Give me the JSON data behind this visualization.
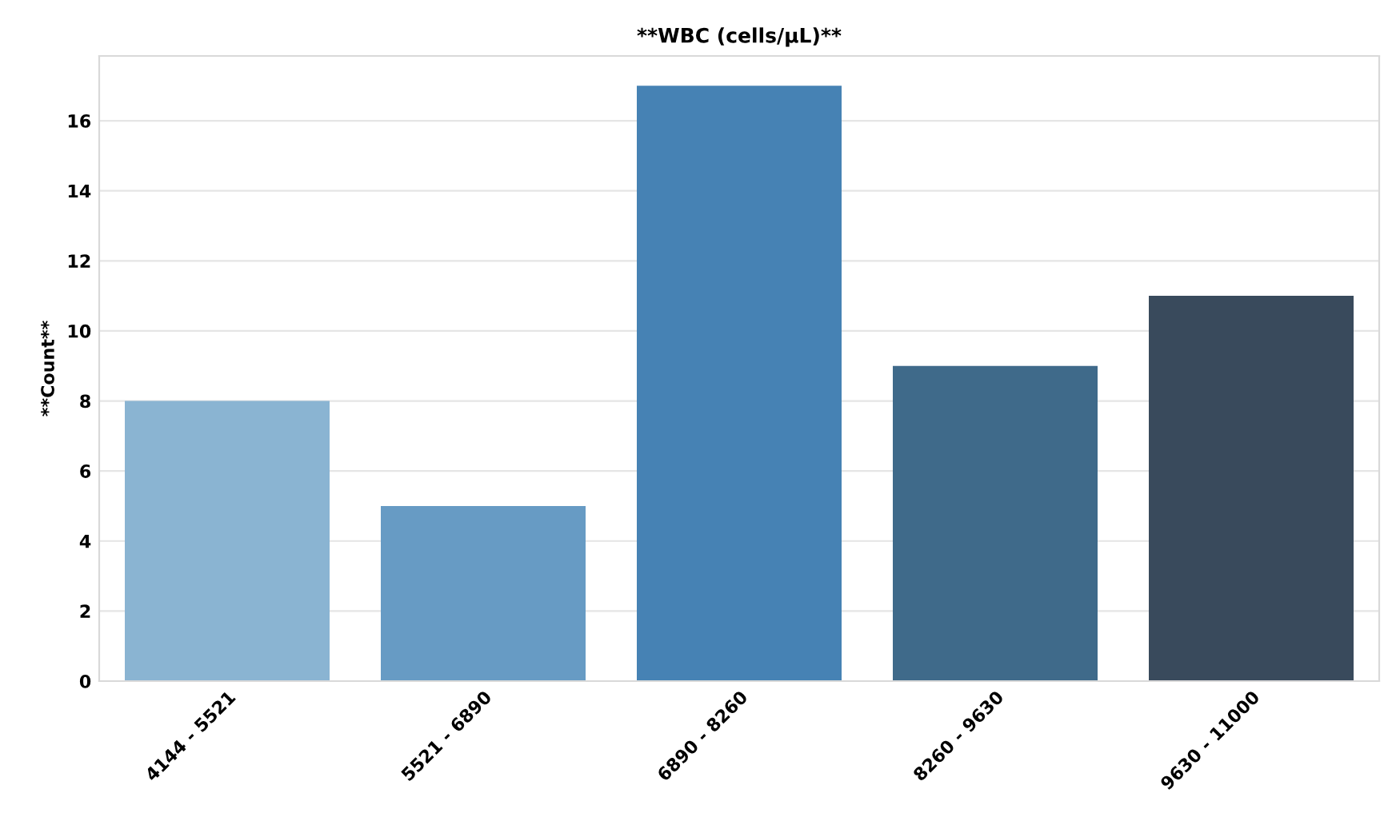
{
  "chart_data": {
    "type": "bar",
    "title": "**WBC (cells/µL)**",
    "ylabel": "**Count**",
    "categories": [
      "4144 - 5521",
      "5521 - 6890",
      "6890 - 8260",
      "8260 - 9630",
      "9630 - 11000"
    ],
    "values": [
      8,
      5,
      17,
      9,
      11
    ],
    "colors": [
      "#8ab4d2",
      "#679bc4",
      "#4682b4",
      "#3f6a8a",
      "#394a5c"
    ],
    "ylim": [
      0,
      17.85
    ],
    "yticks": [
      0,
      2,
      4,
      6,
      8,
      10,
      12,
      14,
      16
    ],
    "grid": "y"
  }
}
